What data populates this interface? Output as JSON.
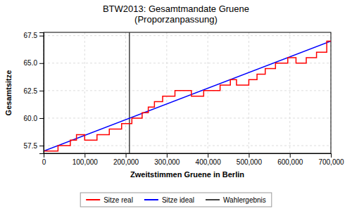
{
  "chart_data": {
    "type": "line",
    "title": "BTW2013: Gesamtmandate Gruene\n(Proporzanpassung)",
    "xlabel": "Zweitstimmen Gruene in Berlin",
    "ylabel": "Gesamtsitze",
    "xlim": [
      0,
      700000
    ],
    "ylim": [
      56.8,
      67.8
    ],
    "xticks": [
      0,
      {
        "value": 100000,
        "label": "100,000"
      },
      {
        "value": 200000,
        "label": "200,000"
      },
      {
        "value": 300000,
        "label": "300,000"
      },
      {
        "value": 400000,
        "label": "400,000"
      },
      {
        "value": 500000,
        "label": "500,000"
      },
      {
        "value": 600000,
        "label": "600,000"
      },
      {
        "value": 700000,
        "label": "700,000"
      }
    ],
    "yticks": [
      57.5,
      {
        "value": 60,
        "label": "60.0"
      },
      62.5,
      {
        "value": 65,
        "label": "65.0"
      },
      67.5
    ],
    "grid": true,
    "legend": "bottom",
    "series": [
      {
        "name": "Sitze real",
        "color": "#ff0000",
        "x": [
          0,
          35000,
          35001,
          65000,
          65001,
          80000,
          80001,
          100000,
          100001,
          130000,
          130001,
          160000,
          160001,
          190000,
          190001,
          215000,
          215001,
          240000,
          240001,
          255000,
          255001,
          270000,
          270001,
          290000,
          290001,
          320000,
          320001,
          360000,
          360001,
          390000,
          390001,
          430000,
          430001,
          455000,
          455001,
          470000,
          470001,
          500000,
          500001,
          520000,
          520001,
          540000,
          540001,
          565000,
          565001,
          595000,
          595001,
          615000,
          615001,
          640000,
          640001,
          665000,
          665001,
          690000,
          690001,
          700000
        ],
        "values": [
          57.0,
          57.0,
          57.5,
          57.5,
          58.0,
          58.0,
          58.5,
          58.5,
          58.0,
          58.0,
          58.5,
          58.5,
          59.0,
          59.0,
          59.5,
          59.5,
          60.0,
          60.0,
          60.5,
          60.5,
          61.0,
          61.0,
          61.5,
          61.5,
          62.0,
          62.0,
          62.5,
          62.5,
          62.0,
          62.0,
          62.5,
          62.5,
          63.0,
          63.0,
          63.5,
          63.5,
          63.0,
          63.0,
          63.5,
          63.5,
          64.0,
          64.0,
          64.5,
          64.5,
          65.0,
          65.0,
          65.5,
          65.5,
          65.0,
          65.0,
          65.5,
          65.5,
          66.0,
          66.0,
          67.0,
          67.0
        ]
      },
      {
        "name": "Sitze ideal",
        "color": "#0000ff",
        "x": [
          0,
          700000
        ],
        "values": [
          57.0,
          67.0
        ]
      },
      {
        "name": "Wahlergebnis",
        "type": "vline",
        "color": "#404040",
        "x": [
          209000
        ]
      }
    ]
  }
}
